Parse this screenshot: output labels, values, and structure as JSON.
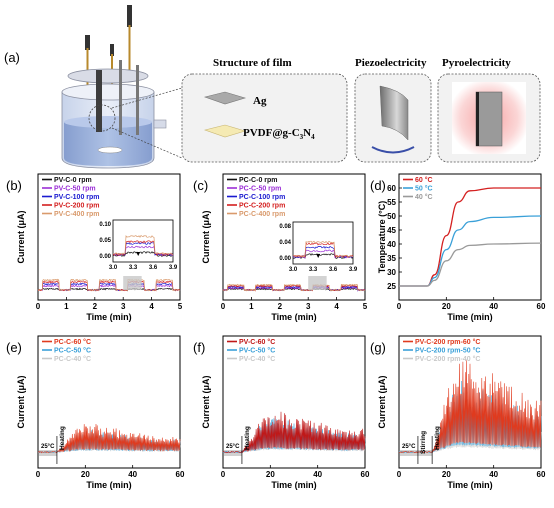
{
  "top": {
    "label": "(a)",
    "structure_title": "Structure of film",
    "piezo_title": "Piezoelectricity",
    "pyro_title": "Pyroelectricity",
    "ag_label": "Ag",
    "film_label": "PVDF@g-C",
    "film_sub1": "3",
    "film_mid": "N",
    "film_sub2": "4"
  },
  "colors": {
    "black": "#111111",
    "purple": "#9b2fd6",
    "blue": "#1a1ad0",
    "red": "#d42020",
    "tan": "#d99a6c",
    "orange_red": "#e03a1e",
    "sky": "#3aa0d8",
    "gray": "#9a9a9a",
    "dark_red": "#c01818",
    "shade": "#c8c8c8"
  },
  "chart_data": [
    {
      "panel": "(b)",
      "type": "line",
      "xlabel": "Time (min)",
      "ylabel": "Current (μA)",
      "xlim": [
        0,
        5
      ],
      "ylim": [
        -0.01,
        0.25
      ],
      "xticks": [
        "0",
        "1",
        "2",
        "3",
        "4",
        "5"
      ],
      "yticks": [],
      "legend": [
        "PV-C-0 rpm",
        "PV-C-50 rpm",
        "PV-C-100 rpm",
        "PV-C-200 rpm",
        "PV-C-400 rpm"
      ],
      "inset": {
        "xticks": [
          "3.0",
          "3.3",
          "3.6",
          "3.9"
        ],
        "yticks": [
          "0.10",
          "0.05",
          "0.00"
        ]
      }
    },
    {
      "panel": "(c)",
      "type": "line",
      "xlabel": "Time (min)",
      "ylabel": "Current (μA)",
      "xlim": [
        0,
        5
      ],
      "ylim": [
        -0.01,
        0.25
      ],
      "xticks": [
        "0",
        "1",
        "2",
        "3",
        "4",
        "5"
      ],
      "yticks": [],
      "legend": [
        "PC-C-0 rpm",
        "PC-C-50 rpm",
        "PC-C-100 rpm",
        "PC-C-200 rpm",
        "PC-C-400 rpm"
      ],
      "inset": {
        "xticks": [
          "3.0",
          "3.3",
          "3.6",
          "3.9"
        ],
        "yticks": [
          "0.08",
          "0.04",
          "0.00"
        ]
      }
    },
    {
      "panel": "(d)",
      "type": "line",
      "xlabel": "Time (min)",
      "ylabel": "Temperature (°C)",
      "xlim": [
        0,
        60
      ],
      "ylim": [
        20,
        65
      ],
      "xticks": [
        "0",
        "20",
        "40",
        "60"
      ],
      "yticks": [
        "25",
        "30",
        "35",
        "40",
        "45",
        "50",
        "55",
        "60"
      ],
      "legend": [
        "60 °C",
        "50 °C",
        "40 °C"
      ],
      "series": [
        {
          "name": "60 °C",
          "x": [
            0,
            12,
            15,
            20,
            25,
            30,
            40,
            60
          ],
          "y": [
            25,
            25,
            29,
            43,
            55,
            59,
            60,
            60
          ]
        },
        {
          "name": "50 °C",
          "x": [
            0,
            12,
            15,
            20,
            25,
            30,
            40,
            60
          ],
          "y": [
            25,
            25,
            28,
            38,
            45,
            48,
            49.5,
            50
          ]
        },
        {
          "name": "40 °C",
          "x": [
            0,
            12,
            15,
            20,
            25,
            30,
            40,
            60
          ],
          "y": [
            25,
            25,
            27,
            34,
            38,
            39.5,
            40,
            40.3
          ]
        }
      ]
    },
    {
      "panel": "(e)",
      "type": "line",
      "xlabel": "Time (min)",
      "ylabel": "Current (μA)",
      "xlim": [
        0,
        60
      ],
      "ylim": [
        0,
        0.5
      ],
      "xticks": [
        "0",
        "20",
        "40",
        "60"
      ],
      "yticks": [],
      "legend": [
        "PC-C-60 °C",
        "PC-C-50 °C",
        "PC-C-40 °C"
      ],
      "annotations": [
        "25°C",
        "Heating"
      ]
    },
    {
      "panel": "(f)",
      "type": "line",
      "xlabel": "Time (min)",
      "ylabel": "Current (μA)",
      "xlim": [
        0,
        60
      ],
      "ylim": [
        0,
        0.5
      ],
      "xticks": [
        "0",
        "20",
        "40",
        "60"
      ],
      "yticks": [],
      "legend": [
        "PV-C-60 °C",
        "PV-C-50 °C",
        "PV-C-40 °C"
      ],
      "annotations": [
        "25°C",
        "Heating"
      ]
    },
    {
      "panel": "(g)",
      "type": "line",
      "xlabel": "Time (min)",
      "ylabel": "Current (μA)",
      "xlim": [
        0,
        60
      ],
      "ylim": [
        0,
        0.5
      ],
      "xticks": [
        "0",
        "20",
        "40",
        "60"
      ],
      "yticks": [],
      "legend": [
        "PV-C-200 rpm-60 °C",
        "PV-C-200 rpm-50 °C",
        "PV-C-200 rpm-40 °C"
      ],
      "annotations": [
        "25°C",
        "Stirring",
        "Heating"
      ]
    }
  ]
}
